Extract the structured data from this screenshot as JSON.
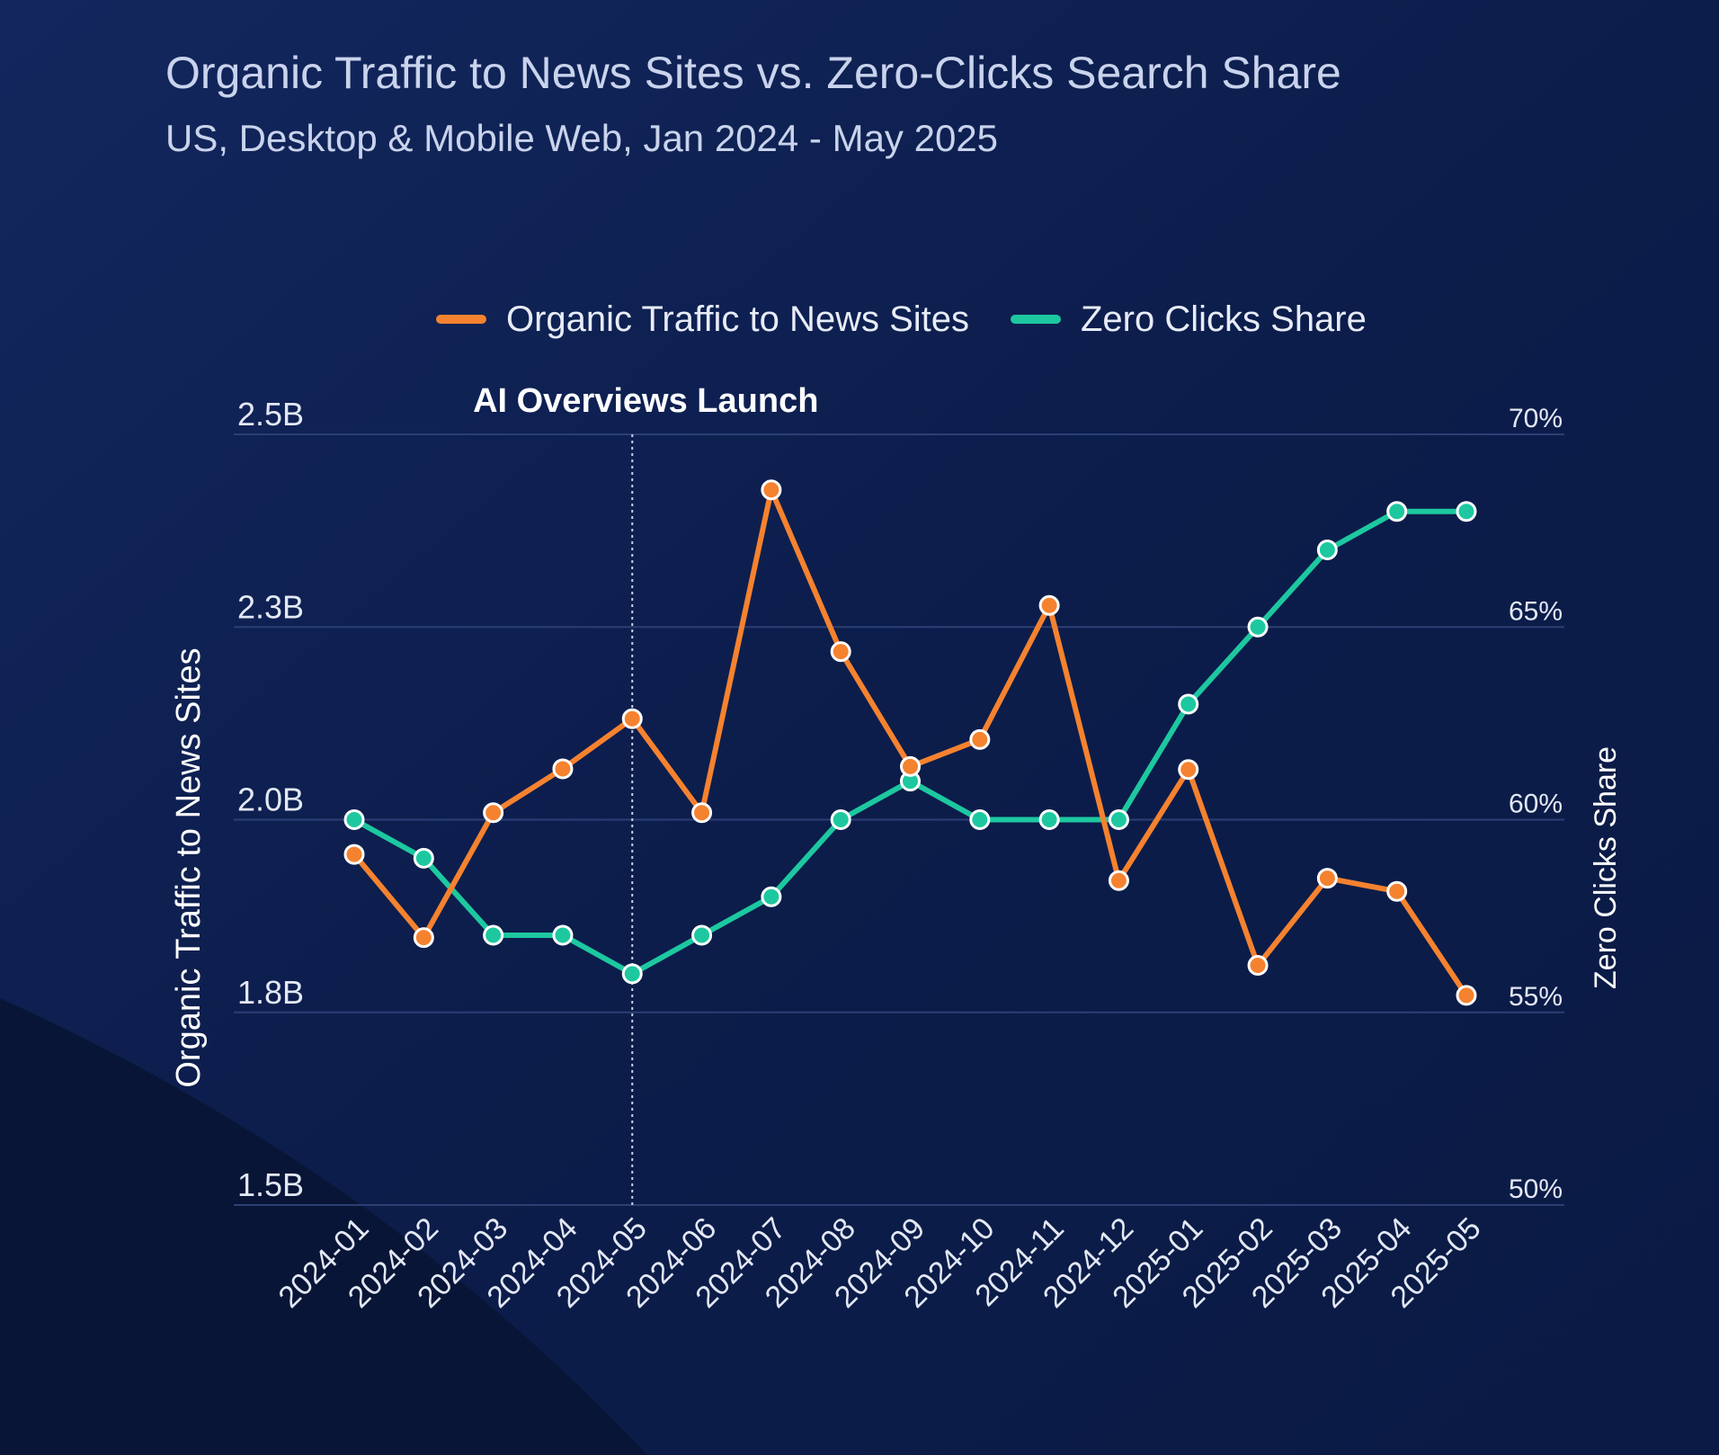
{
  "chart_data": {
    "type": "line",
    "title": "Organic Traffic to News Sites vs. Zero-Clicks Search Share",
    "subtitle": "US, Desktop & Mobile Web, Jan 2024 - May 2025",
    "ylabel": "Organic Traffic to News Sites",
    "y2label": "Zero Clicks Share",
    "categories": [
      "2024-01",
      "2024-02",
      "2024-03",
      "2024-04",
      "2024-05",
      "2024-06",
      "2024-07",
      "2024-08",
      "2024-09",
      "2024-10",
      "2024-11",
      "2024-12",
      "2025-01",
      "2025-02",
      "2025-03",
      "2025-04",
      "2025-05"
    ],
    "ylim": [
      1.5,
      2.5
    ],
    "y2lim": [
      50,
      70
    ],
    "yticks": [
      1.5,
      1.75,
      2.0,
      2.25,
      2.5
    ],
    "ytick_labels": [
      "1.5B",
      "1.8B",
      "2.0B",
      "2.3B",
      "2.5B"
    ],
    "y2ticks": [
      50,
      55,
      60,
      65,
      70
    ],
    "y2tick_labels": [
      "50%",
      "55%",
      "60%",
      "65%",
      "70%"
    ],
    "grid": true,
    "legend": "top-center",
    "annotation": {
      "label": "AI Overviews Launch",
      "x": "2024-05"
    },
    "series": [
      {
        "name": "Organic Traffic to News Sites",
        "axis": "left",
        "color": "#f5822f",
        "values": [
          1.955,
          1.847,
          2.009,
          2.066,
          2.131,
          2.009,
          2.428,
          2.218,
          2.069,
          2.104,
          2.278,
          1.921,
          2.065,
          1.811,
          1.924,
          1.907,
          1.772
        ]
      },
      {
        "name": "Zero Clicks Share",
        "axis": "right",
        "color": "#1dc8a0",
        "values": [
          60,
          59,
          57,
          57,
          56,
          57,
          58,
          60,
          61,
          60,
          60,
          60,
          63,
          65,
          67,
          68,
          68
        ]
      }
    ]
  }
}
